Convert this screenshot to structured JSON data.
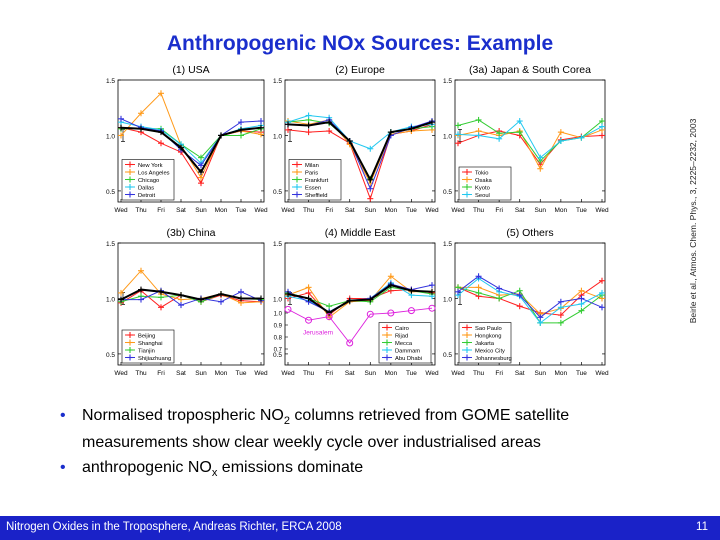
{
  "slide": {
    "title": "Anthropogenic NOx Sources: Example",
    "citation": "Beirle et al., Atmos. Chem. Phys., 3, 2225–2232, 2003",
    "bullets": [
      {
        "pre": "Normalised tropospheric NO",
        "sub": "2",
        "post": " columns retrieved from GOME satellite measurements show clear weekly cycle over industrialised areas"
      },
      {
        "pre": "anthropogenic NO",
        "sub": "x",
        "post": " emissions dominate"
      }
    ],
    "footer": "Nitrogen Oxides in the Troposphere, Andreas Richter, ERCA 2008",
    "page_number": "11"
  },
  "colors": {
    "title": "#1a2ecc",
    "footer_bg": "#1a22c8",
    "jerusalem": "#dd22dd"
  },
  "chart_data": [
    {
      "type": "line",
      "title": "(1) USA",
      "categories": [
        "Wed",
        "Thu",
        "Fri",
        "Sat",
        "Sun",
        "Mon",
        "Tue",
        "Wed"
      ],
      "ylim": [
        0.4,
        1.5
      ],
      "yticks": [
        "1.5",
        "1.0",
        "0.5"
      ],
      "legend_position": "bottom-left",
      "series": [
        {
          "name": "New York",
          "color": "#ff2020",
          "values": [
            1.07,
            1.03,
            0.93,
            0.85,
            0.57,
            1.0,
            1.04,
            1.03
          ]
        },
        {
          "name": "Los Angeles",
          "color": "#ff9a1a",
          "values": [
            1.0,
            1.2,
            1.38,
            0.91,
            0.62,
            1.0,
            1.04,
            1.01
          ]
        },
        {
          "name": "Chicago",
          "color": "#33cc33",
          "values": [
            1.06,
            1.06,
            1.06,
            0.92,
            0.8,
            1.0,
            1.0,
            1.06
          ]
        },
        {
          "name": "Dallas",
          "color": "#22c8f0",
          "values": [
            1.12,
            1.08,
            1.05,
            0.92,
            0.75,
            1.0,
            1.06,
            1.09
          ]
        },
        {
          "name": "Detroit",
          "color": "#3333dd",
          "values": [
            1.15,
            1.07,
            1.04,
            0.87,
            0.73,
            1.0,
            1.12,
            1.13
          ]
        },
        {
          "name": "",
          "color": "#000000",
          "values": [
            1.07,
            1.06,
            1.03,
            0.89,
            0.67,
            1.0,
            1.05,
            1.07
          ]
        }
      ]
    },
    {
      "type": "line",
      "title": "(2) Europe",
      "categories": [
        "Wed",
        "Thu",
        "Fri",
        "Sat",
        "Sun",
        "Mon",
        "Tue",
        "Wed"
      ],
      "ylim": [
        0.4,
        1.5
      ],
      "yticks": [
        "1.5",
        "1.0",
        "0.5"
      ],
      "legend_position": "bottom-left",
      "series": [
        {
          "name": "Milan",
          "color": "#ff2020",
          "values": [
            1.05,
            1.03,
            1.04,
            0.93,
            0.43,
            1.01,
            1.04,
            1.1
          ]
        },
        {
          "name": "Paris",
          "color": "#ff9a1a",
          "values": [
            1.13,
            1.1,
            1.14,
            0.92,
            0.57,
            1.01,
            1.04,
            1.05
          ]
        },
        {
          "name": "Frankfurt",
          "color": "#33cc33",
          "values": [
            1.12,
            1.14,
            1.11,
            0.95,
            0.61,
            1.03,
            1.06,
            1.08
          ]
        },
        {
          "name": "Essen",
          "color": "#22c8f0",
          "values": [
            1.12,
            1.18,
            1.16,
            0.95,
            0.88,
            1.03,
            1.08,
            1.1
          ]
        },
        {
          "name": "Sheffield",
          "color": "#3333dd",
          "values": [
            1.1,
            1.09,
            1.14,
            0.95,
            0.52,
            1.0,
            1.07,
            1.13
          ]
        },
        {
          "name": "",
          "color": "#000000",
          "values": [
            1.1,
            1.09,
            1.12,
            0.95,
            0.6,
            1.03,
            1.06,
            1.12
          ]
        }
      ]
    },
    {
      "type": "line",
      "title": "(3a) Japan & South Corea",
      "categories": [
        "Wed",
        "Thu",
        "Fri",
        "Sat",
        "Sun",
        "Mon",
        "Tue",
        "Wed"
      ],
      "ylim": [
        0.4,
        1.5
      ],
      "yticks": [
        "1.5",
        "1.0",
        "0.5"
      ],
      "legend_position": "bottom-left",
      "series": [
        {
          "name": "Tokio",
          "color": "#ff2020",
          "values": [
            0.93,
            1.0,
            1.04,
            1.0,
            0.74,
            0.96,
            0.99,
            1.0
          ]
        },
        {
          "name": "Osaka",
          "color": "#ff9a1a",
          "values": [
            1.0,
            1.04,
            1.0,
            1.04,
            0.7,
            1.03,
            0.98,
            1.05
          ]
        },
        {
          "name": "Kyoto",
          "color": "#33cc33",
          "values": [
            1.09,
            1.14,
            1.02,
            1.03,
            0.77,
            0.95,
            0.98,
            1.13
          ]
        },
        {
          "name": "Seoul",
          "color": "#22c8f0",
          "values": [
            1.01,
            1.0,
            0.97,
            1.13,
            0.8,
            0.95,
            0.98,
            1.08
          ]
        }
      ]
    },
    {
      "type": "line",
      "title": "(3b) China",
      "categories": [
        "Wed",
        "Thu",
        "Fri",
        "Sat",
        "Sun",
        "Mon",
        "Tue",
        "Wed"
      ],
      "ylim": [
        0.4,
        1.5
      ],
      "yticks": [
        "1.5",
        "1.0",
        "0.5"
      ],
      "legend_position": "bottom-left",
      "series": [
        {
          "name": "Beijing",
          "color": "#ff2020",
          "values": [
            0.96,
            1.07,
            0.92,
            1.03,
            0.97,
            1.03,
            0.98,
            0.97
          ]
        },
        {
          "name": "Shanghai",
          "color": "#ff9a1a",
          "values": [
            1.05,
            1.25,
            1.04,
            0.99,
            1.0,
            1.04,
            0.96,
            0.97
          ]
        },
        {
          "name": "Tianjin",
          "color": "#33cc33",
          "values": [
            0.97,
            1.02,
            1.01,
            1.03,
            0.97,
            1.04,
            1.0,
            0.99
          ]
        },
        {
          "name": "Shijiazhuang",
          "color": "#3333dd",
          "values": [
            0.99,
            0.99,
            1.07,
            0.94,
            1.0,
            0.97,
            1.06,
            0.98
          ]
        },
        {
          "name": "",
          "color": "#000000",
          "values": [
            0.99,
            1.08,
            1.06,
            1.03,
            0.99,
            1.04,
            1.0,
            1.0
          ]
        }
      ]
    },
    {
      "type": "line",
      "title": "(4) Middle East",
      "categories": [
        "Wed",
        "Thu",
        "Fri",
        "Sat",
        "Sun",
        "Mon",
        "Tue",
        "Wed"
      ],
      "ylim": [
        0.4,
        1.5
      ],
      "yticks": [
        "1.5",
        "1.0",
        "0.5"
      ],
      "legend_position": "bottom-right",
      "series": [
        {
          "name": "Cairo",
          "color": "#ff2020",
          "values": [
            1.0,
            1.05,
            0.85,
            1.0,
            1.0,
            1.07,
            1.08,
            1.05
          ]
        },
        {
          "name": "Rijad",
          "color": "#ff9a1a",
          "values": [
            1.03,
            1.1,
            0.83,
            0.97,
            0.98,
            1.2,
            1.06,
            1.06
          ]
        },
        {
          "name": "Mecca",
          "color": "#33cc33",
          "values": [
            1.05,
            1.0,
            0.93,
            0.98,
            0.97,
            1.1,
            1.07,
            1.04
          ]
        },
        {
          "name": "Dammam",
          "color": "#22c8f0",
          "values": [
            1.02,
            0.98,
            0.88,
            0.98,
            1.0,
            1.14,
            1.03,
            1.02
          ]
        },
        {
          "name": "Abu Dhabi",
          "color": "#3333dd",
          "values": [
            1.06,
            0.97,
            0.88,
            0.98,
            1.0,
            1.13,
            1.08,
            1.12
          ]
        },
        {
          "name": "",
          "color": "#000000",
          "values": [
            1.04,
            1.0,
            0.87,
            0.98,
            0.99,
            1.12,
            1.07,
            1.06
          ]
        }
      ]
    },
    {
      "type": "line",
      "title": "Jerusalem",
      "inset_of": "(4) Middle East",
      "categories": [
        "Wed",
        "Thu",
        "Fri",
        "Sat",
        "Sun",
        "Mon",
        "Tue",
        "Wed"
      ],
      "ylim": [
        0.7,
        1.1
      ],
      "yticks": [
        "1.0",
        "0.9",
        "0.8",
        "0.7"
      ],
      "series": [
        {
          "name": "Jerusalem",
          "color": "#dd22dd",
          "values": [
            1.03,
            0.94,
            0.97,
            0.75,
            0.99,
            1.0,
            1.02,
            1.04
          ]
        }
      ]
    },
    {
      "type": "line",
      "title": "(5) Others",
      "categories": [
        "Wed",
        "Thu",
        "Fri",
        "Sat",
        "Sun",
        "Mon",
        "Tue",
        "Wed"
      ],
      "ylim": [
        0.4,
        1.5
      ],
      "yticks": [
        "1.5",
        "1.0",
        "0.5"
      ],
      "legend_position": "bottom-left",
      "series": [
        {
          "name": "Sao Paulo",
          "color": "#ff2020",
          "values": [
            1.1,
            1.02,
            1.0,
            0.93,
            0.87,
            0.85,
            1.03,
            1.16
          ]
        },
        {
          "name": "Hongkong",
          "color": "#ff9a1a",
          "values": [
            1.1,
            1.1,
            1.03,
            1.04,
            0.86,
            0.91,
            1.07,
            1.0
          ]
        },
        {
          "name": "Jakarta",
          "color": "#33cc33",
          "values": [
            1.1,
            1.05,
            1.0,
            1.07,
            0.78,
            0.78,
            0.89,
            1.03
          ]
        },
        {
          "name": "Mexico City",
          "color": "#22c8f0",
          "values": [
            1.03,
            1.18,
            1.06,
            1.02,
            0.78,
            0.92,
            0.95,
            1.05
          ]
        },
        {
          "name": "Johannesburg",
          "color": "#3333dd",
          "values": [
            1.06,
            1.2,
            1.09,
            1.03,
            0.83,
            0.97,
            1.0,
            0.92
          ]
        }
      ]
    }
  ]
}
